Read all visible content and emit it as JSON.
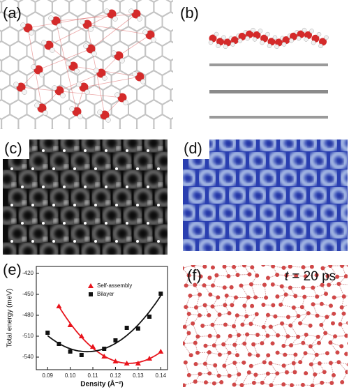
{
  "panels": {
    "a": "(a)",
    "b": "(b)",
    "c": "(c)",
    "d": "(d)",
    "e": "(e)",
    "f": "(f)"
  },
  "annotation": {
    "variable": "t",
    "text": "= 20 ps"
  },
  "chart_data": {
    "type": "scatter",
    "x_label": "Density (Å⁻²)",
    "y_label": "Total energy (meV)",
    "xlim": [
      0.085,
      0.143
    ],
    "ylim": [
      -558,
      -410
    ],
    "xticks": [
      0.09,
      {
        "value": 0.1,
        "label": "0.10"
      },
      0.11,
      0.12,
      0.13,
      0.14
    ],
    "yticks": [
      -420,
      -450,
      -480,
      -510,
      -540
    ],
    "legend": "upper right",
    "series": [
      {
        "name": "Self-assembly",
        "color": "#e8141c",
        "marker": "triangle",
        "x": [
          0.095,
          0.1,
          0.105,
          0.11,
          0.115,
          0.12,
          0.125,
          0.13,
          0.135,
          0.14
        ],
        "values": [
          -467,
          -494,
          -510,
          -525,
          -539,
          -546,
          -549,
          -549,
          -542,
          -532
        ]
      },
      {
        "name": "Bilayer",
        "color": "#111111",
        "marker": "square",
        "x": [
          0.09,
          0.095,
          0.1,
          0.105,
          0.115,
          0.12,
          0.125,
          0.13,
          0.135,
          0.14
        ],
        "values": [
          -505,
          -521,
          -532,
          -537,
          -528,
          -516,
          -498,
          -499,
          -482,
          -449
        ]
      }
    ]
  }
}
